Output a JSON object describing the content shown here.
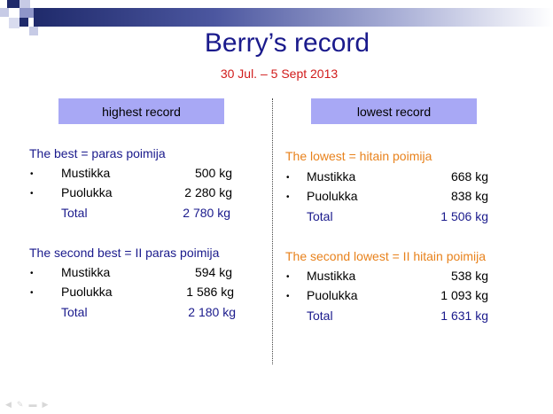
{
  "slide": {
    "title": "Berry’s record",
    "subtitle": "30 Jul. – 5 Sept 2013"
  },
  "left": {
    "header": "highest record",
    "groups": [
      {
        "title": "The best = paras poimija",
        "items": [
          {
            "name": "Mustikka",
            "value": "500 kg"
          },
          {
            "name": "Puolukka",
            "value": "2 280 kg"
          }
        ],
        "total_label": "Total",
        "total_value": "2 780 kg"
      },
      {
        "title": "The second best = II paras poimija",
        "items": [
          {
            "name": "Mustikka",
            "value": "594 kg"
          },
          {
            "name": "Puolukka",
            "value": "1 586 kg"
          }
        ],
        "total_label": "Total",
        "total_value": "2 180 kg"
      }
    ]
  },
  "right": {
    "header": "lowest record",
    "groups": [
      {
        "title": "The lowest = hitain poimija",
        "items": [
          {
            "name": "Mustikka",
            "value": "668 kg"
          },
          {
            "name": "Puolukka",
            "value": "838 kg"
          }
        ],
        "total_label": "Total",
        "total_value": "1 506 kg"
      },
      {
        "title": "The second lowest = II hitain poimija",
        "items": [
          {
            "name": "Mustikka",
            "value": "538 kg"
          },
          {
            "name": "Puolukka",
            "value": "1 093 kg"
          }
        ],
        "total_label": "Total",
        "total_value": "1 631 kg"
      }
    ]
  },
  "colors": {
    "title": "#1a1a8c",
    "subtitle": "#d11b1b",
    "left_group_title": "#1a1a8c",
    "right_group_title": "#e8821c",
    "header_box": "#a8a8f5"
  },
  "nav_icons": [
    "previous-arrow-icon",
    "pen-icon",
    "menu-icon",
    "next-arrow-icon"
  ]
}
